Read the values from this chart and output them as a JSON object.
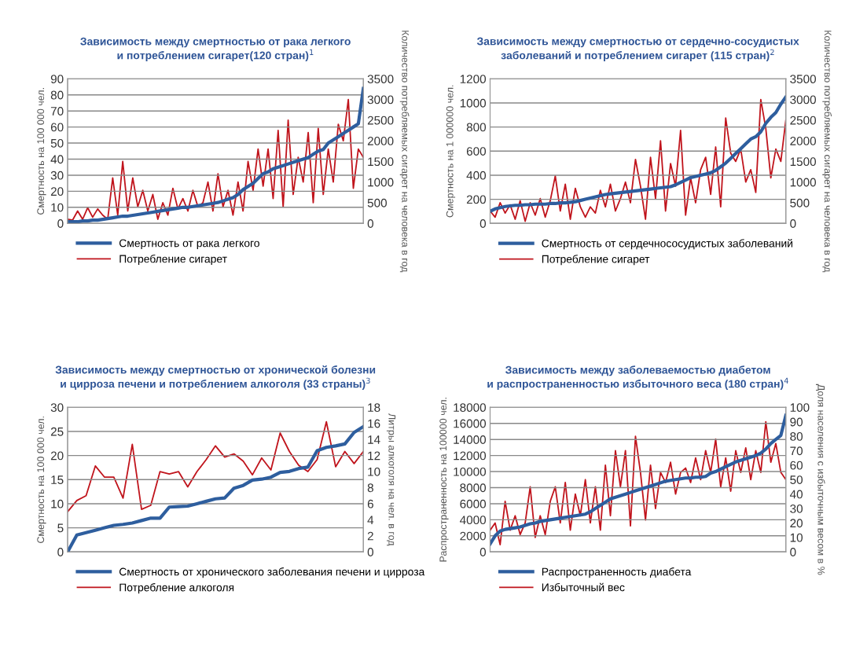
{
  "chart_data": [
    {
      "type": "line",
      "title": "Зависимость между смертностью от рака легкого\nи потреблением сигарет(120 стран)$^{1}$",
      "ylabel": "Смертность на 100 000 чел.",
      "y2label": "Количество потребляемых сигарет на человека в год",
      "categories": [
        null,
        null,
        null,
        null,
        null,
        null,
        null,
        null,
        null,
        null,
        null,
        null,
        null,
        null,
        null,
        null,
        null,
        null,
        null,
        null,
        null,
        null,
        null,
        null,
        null,
        null,
        null,
        null,
        null,
        null,
        null,
        null,
        null,
        null,
        null,
        null,
        null,
        null,
        null,
        null,
        null,
        null,
        null,
        null,
        null,
        null,
        null,
        null,
        null,
        null,
        null,
        null,
        null,
        null,
        null,
        null,
        null,
        null,
        null,
        null
      ],
      "series": [
        {
          "name": "Смертность от рака легкого",
          "color": "#2e5e9e",
          "values": [
            1,
            1,
            1,
            1.5,
            1.5,
            2,
            2,
            2.5,
            3,
            3.5,
            4,
            4.5,
            4.5,
            5,
            5.5,
            6,
            6.5,
            7,
            7.5,
            8,
            8.5,
            9,
            9.5,
            10,
            10,
            10.5,
            11,
            11.5,
            12,
            12.5,
            13,
            14,
            15,
            16,
            18,
            21,
            23,
            25,
            28,
            31,
            32,
            34,
            35,
            36,
            37,
            38,
            39,
            40,
            41,
            43,
            45,
            46,
            50,
            52,
            54,
            56,
            58,
            60,
            62,
            84
          ]
        },
        {
          "name": "Потребление сигарет",
          "color": "#c0141c",
          "axis": "y2",
          "values": [
            100,
            80,
            300,
            100,
            380,
            150,
            350,
            200,
            100,
            1100,
            200,
            1500,
            300,
            1100,
            400,
            800,
            300,
            700,
            100,
            500,
            200,
            850,
            350,
            600,
            300,
            800,
            400,
            500,
            1000,
            300,
            1200,
            400,
            800,
            200,
            1000,
            300,
            1500,
            800,
            1800,
            900,
            1800,
            600,
            2250,
            400,
            2500,
            700,
            1600,
            1000,
            2200,
            500,
            2300,
            700,
            1800,
            1000,
            2400,
            2000,
            3000,
            850,
            1800,
            1600
          ]
        }
      ],
      "ylim": [
        0,
        90
      ],
      "yticks": [
        0,
        10,
        20,
        30,
        40,
        50,
        60,
        70,
        80,
        90
      ],
      "y2lim": [
        0,
        3500
      ],
      "y2ticks": [
        0,
        500,
        1000,
        1500,
        2000,
        2500,
        3000,
        3500
      ],
      "grid": "y",
      "legend": "bottom",
      "tick_labels": "y"
    },
    {
      "type": "line",
      "title": "Зависимость между смертностью от сердечно-сосудистых\nзаболеваний и потреблением сигарет (115 стран)$^{2}$",
      "ylabel": "Смертность на 1 000000 чел.",
      "y2label": "Количество потребляемых сигарет на человека в год",
      "categories": [
        null,
        null,
        null,
        null,
        null,
        null,
        null,
        null,
        null,
        null,
        null,
        null,
        null,
        null,
        null,
        null,
        null,
        null,
        null,
        null,
        null,
        null,
        null,
        null,
        null,
        null,
        null,
        null,
        null,
        null,
        null,
        null,
        null,
        null,
        null,
        null,
        null,
        null,
        null,
        null,
        null,
        null,
        null,
        null,
        null,
        null,
        null,
        null,
        null,
        null,
        null,
        null,
        null,
        null,
        null,
        null,
        null,
        null,
        null,
        null
      ],
      "series": [
        {
          "name": "Смертность от сердечнососудистых заболеваний",
          "color": "#2e5e9e",
          "values": [
            100,
            120,
            130,
            140,
            145,
            150,
            150,
            155,
            155,
            160,
            160,
            160,
            165,
            165,
            170,
            170,
            175,
            180,
            190,
            200,
            210,
            220,
            230,
            240,
            245,
            250,
            255,
            260,
            265,
            270,
            275,
            280,
            285,
            290,
            295,
            300,
            305,
            320,
            340,
            360,
            380,
            390,
            400,
            410,
            420,
            440,
            470,
            500,
            540,
            580,
            620,
            660,
            700,
            720,
            760,
            830,
            880,
            920,
            990,
            1050
          ]
        },
        {
          "name": "Потребление сигарет",
          "color": "#c0141c",
          "axis": "y2",
          "values": [
            300,
            150,
            500,
            250,
            450,
            100,
            550,
            50,
            500,
            200,
            600,
            150,
            550,
            1150,
            300,
            950,
            100,
            850,
            400,
            150,
            400,
            250,
            800,
            400,
            950,
            300,
            600,
            1000,
            500,
            1550,
            900,
            100,
            1600,
            600,
            2000,
            300,
            1450,
            900,
            2250,
            200,
            1100,
            500,
            1300,
            1600,
            700,
            1850,
            400,
            2550,
            1700,
            1500,
            1800,
            1000,
            1300,
            750,
            3000,
            2300,
            1100,
            1800,
            1500,
            2500
          ]
        }
      ],
      "ylim": [
        0,
        1200
      ],
      "yticks": [
        0,
        200,
        400,
        600,
        800,
        1000,
        1200
      ],
      "y2lim": [
        0,
        3500
      ],
      "y2ticks": [
        0,
        500,
        1000,
        1500,
        2000,
        2500,
        3000,
        3500
      ],
      "grid": "y",
      "legend": "bottom",
      "tick_labels": "y"
    },
    {
      "type": "line",
      "title": "Зависимость между смертностью от хронической болезни\nи цирроза печени и потреблением алкоголя (33 страны)$^{3}$",
      "ylabel": "Смертность на 100 000 чел.",
      "y2label": "Литры алкоголя на чел. в год",
      "categories": [
        null,
        null,
        null,
        null,
        null,
        null,
        null,
        null,
        null,
        null,
        null,
        null,
        null,
        null,
        null,
        null,
        null,
        null,
        null,
        null,
        null,
        null,
        null,
        null,
        null,
        null,
        null,
        null,
        null,
        null,
        null,
        null,
        null
      ],
      "series": [
        {
          "name": "Смертность от хронического заболевания печени и цирроза",
          "color": "#2e5e9e",
          "values": [
            0,
            3.5,
            4,
            4.5,
            5,
            5.5,
            5.7,
            6,
            6.5,
            7,
            7,
            9.3,
            9.4,
            9.5,
            10,
            10.5,
            11,
            11.2,
            13.2,
            13.8,
            14.9,
            15.1,
            15.5,
            16.5,
            16.7,
            17.3,
            17.6,
            21,
            21.7,
            22,
            22.4,
            24.8,
            26
          ]
        },
        {
          "name": "Потребление алкоголя",
          "color": "#c0141c",
          "axis": "y2",
          "values": [
            5,
            6.4,
            7,
            10.7,
            9.3,
            9.3,
            6.7,
            13.4,
            5.3,
            5.8,
            10,
            9.7,
            10,
            8.1,
            10,
            11.5,
            13.2,
            11.8,
            12.2,
            11.3,
            9.6,
            11.7,
            10.2,
            14.8,
            12.5,
            10.8,
            10,
            11.5,
            16.2,
            10.6,
            12.5,
            11,
            12.5
          ]
        }
      ],
      "ylim": [
        0,
        30
      ],
      "yticks": [
        0,
        5,
        10,
        15,
        20,
        25,
        30
      ],
      "y2lim": [
        0,
        18
      ],
      "y2ticks": [
        0,
        2,
        4,
        6,
        8,
        10,
        12,
        14,
        16,
        18
      ],
      "grid": "y",
      "legend": "bottom",
      "tick_labels": "y"
    },
    {
      "type": "line",
      "title": "Зависимость между заболеваемостью диабетом\nи распространенностью избыточного веса (180 стран)$^{4}$",
      "ylabel": "Распространенность на 100000 чел.",
      "y2label": "Доля населения с избыточным весом в %",
      "categories": [
        null,
        null,
        null,
        null,
        null,
        null,
        null,
        null,
        null,
        null,
        null,
        null,
        null,
        null,
        null,
        null,
        null,
        null,
        null,
        null,
        null,
        null,
        null,
        null,
        null,
        null,
        null,
        null,
        null,
        null,
        null,
        null,
        null,
        null,
        null,
        null,
        null,
        null,
        null,
        null,
        null,
        null,
        null,
        null,
        null,
        null,
        null,
        null,
        null,
        null,
        null,
        null,
        null,
        null,
        null,
        null,
        null,
        null,
        null,
        null
      ],
      "series": [
        {
          "name": "Распространенность диабета",
          "color": "#2e5e9e",
          "values": [
            1000,
            2000,
            2600,
            2800,
            2900,
            3000,
            3100,
            3300,
            3500,
            3600,
            3800,
            3900,
            4000,
            4100,
            4200,
            4300,
            4400,
            4500,
            4600,
            4700,
            5000,
            5400,
            5800,
            6200,
            6600,
            6800,
            7000,
            7200,
            7400,
            7600,
            7800,
            8000,
            8200,
            8400,
            8600,
            8800,
            8900,
            9000,
            9100,
            9200,
            9200,
            9300,
            9300,
            9400,
            9800,
            10000,
            10300,
            10600,
            10900,
            11200,
            11400,
            11600,
            11800,
            12000,
            12300,
            12800,
            13500,
            14000,
            14500,
            17000
          ]
        },
        {
          "name": "Избыточный вес",
          "color": "#c0141c",
          "axis": "y2",
          "values": [
            15,
            20,
            5,
            35,
            15,
            25,
            12,
            20,
            45,
            10,
            25,
            12,
            35,
            45,
            20,
            48,
            15,
            40,
            25,
            50,
            20,
            45,
            15,
            60,
            25,
            70,
            45,
            70,
            18,
            80,
            55,
            22,
            60,
            30,
            55,
            48,
            62,
            40,
            55,
            58,
            48,
            65,
            50,
            70,
            55,
            78,
            45,
            65,
            42,
            70,
            55,
            72,
            50,
            70,
            55,
            90,
            62,
            75,
            55,
            50
          ]
        }
      ],
      "ylim": [
        0,
        18000
      ],
      "yticks": [
        0,
        2000,
        4000,
        6000,
        8000,
        10000,
        12000,
        14000,
        16000,
        18000
      ],
      "y2lim": [
        0,
        100
      ],
      "y2ticks": [
        0,
        10,
        20,
        30,
        40,
        50,
        60,
        70,
        80,
        90,
        100
      ],
      "grid": "y",
      "legend": "bottom",
      "tick_labels": "y"
    }
  ]
}
